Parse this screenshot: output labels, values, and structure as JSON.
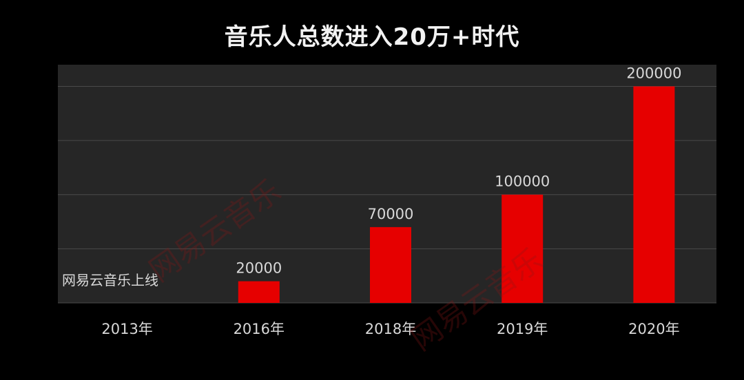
{
  "title": "音乐人总数进入20万+时代",
  "annotation": "网易云音乐上线",
  "watermark_text": "网易云音乐",
  "colors": {
    "background": "#000000",
    "plot_area": "#262626",
    "bar": "#e60000",
    "gridline": "#4a4a4a",
    "text": "#d9d9d9"
  },
  "chart_data": {
    "type": "bar",
    "title": "音乐人总数进入20万+时代",
    "categories": [
      "2013年",
      "2016年",
      "2018年",
      "2019年",
      "2020年"
    ],
    "values": [
      0,
      20000,
      70000,
      100000,
      200000
    ],
    "data_labels": [
      "",
      "20000",
      "70000",
      "100000",
      "200000"
    ],
    "ylim": [
      0,
      220000
    ],
    "grid": true,
    "y_axis_visible": false,
    "legend": "none"
  }
}
